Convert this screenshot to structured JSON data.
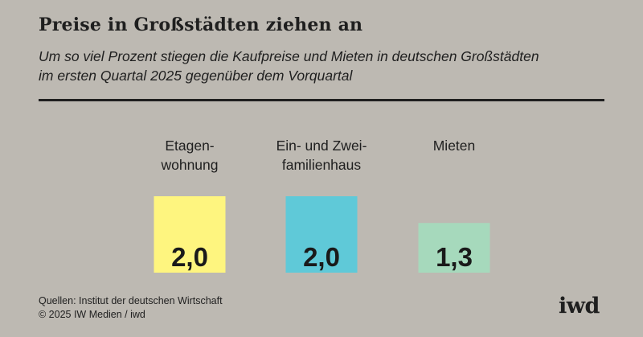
{
  "chart_data": {
    "type": "bar",
    "title": "Preise in Großstädten ziehen an",
    "subtitle_lines": [
      "Um so viel Prozent stiegen die Kaufpreise und Mieten in deutschen Großstädten",
      "im ersten Quartal 2025 gegenüber dem Vorquartal"
    ],
    "categories": [
      [
        "Etagen-",
        "wohnung"
      ],
      [
        "Ein- und Zwei-",
        "familienhaus"
      ],
      [
        "Mieten"
      ]
    ],
    "values": [
      2.0,
      2.0,
      1.3
    ],
    "value_labels": [
      "2,0",
      "2,0",
      "1,3"
    ],
    "colors": [
      "#fef57f",
      "#5fc9d8",
      "#a6d9bc"
    ],
    "ylim": [
      0,
      2.0
    ],
    "grid": false,
    "legend": "none"
  },
  "footer": {
    "source": "Quellen: Institut der deutschen Wirtschaft",
    "copyright": "© 2025 IW Medien / iwd"
  },
  "logo": "iwd"
}
